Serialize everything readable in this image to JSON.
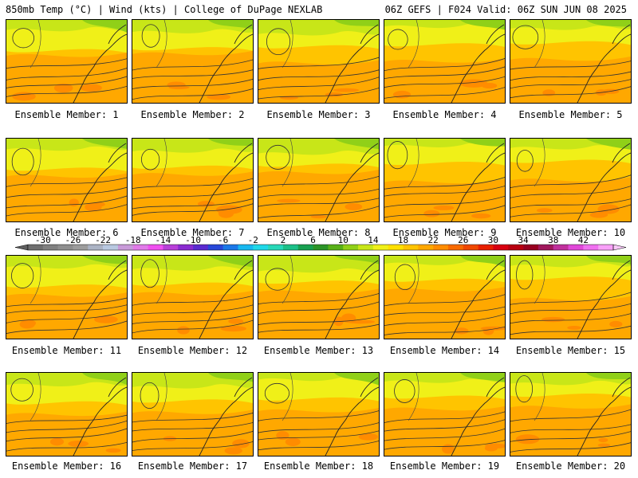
{
  "header": {
    "left": "850mb Temp (°C) | Wind (kts) | College of DuPage NEXLAB",
    "right": "06Z GEFS | F024 Valid: 06Z SUN JUN 08 2025"
  },
  "member_label_prefix": "Ensemble Member: ",
  "members": [
    1,
    2,
    3,
    4,
    5,
    6,
    7,
    8,
    9,
    10,
    11,
    12,
    13,
    14,
    15,
    16,
    17,
    18,
    19,
    20
  ],
  "colorbar": {
    "ticks": [
      "-30",
      "-26",
      "-22",
      "-18",
      "-14",
      "-10",
      "-6",
      "-2",
      "2",
      "6",
      "10",
      "14",
      "18",
      "22",
      "26",
      "30",
      "34",
      "38",
      "42"
    ],
    "colors": [
      "#6f6f6f",
      "#808080",
      "#8e8e8e",
      "#9c9c9c",
      "#abb3c4",
      "#b8c8e0",
      "#c89ad8",
      "#e07ae8",
      "#f050f0",
      "#b83fd8",
      "#8a2bd0",
      "#5a2ad0",
      "#2848d8",
      "#1c78e8",
      "#18b8f0",
      "#20d8e8",
      "#28d8b8",
      "#1cc088",
      "#18a050",
      "#2c9428",
      "#58b018",
      "#90d018",
      "#c8e618",
      "#f0f018",
      "#ffe000",
      "#ffc400",
      "#ffa800",
      "#ff8c00",
      "#f86a00",
      "#f04800",
      "#e82000",
      "#d80010",
      "#b80010",
      "#980020",
      "#a0185c",
      "#c0309c",
      "#e048d8",
      "#f070f0",
      "#f8a0f8"
    ]
  }
}
